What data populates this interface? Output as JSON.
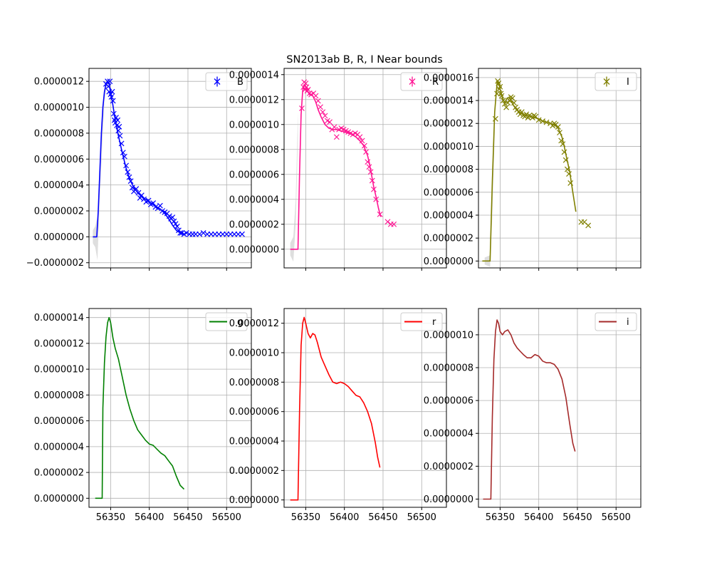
{
  "figure": {
    "title": "SN2013ab  B, R, I Near bounds"
  },
  "chart_data": [
    {
      "type": "line",
      "panel": "top-left",
      "xlim": [
        56322,
        56532
      ],
      "ylim": [
        -2.4e-07,
        1.3e-06
      ],
      "yticks": [
        -2e-07,
        0,
        2e-07,
        4e-07,
        6e-07,
        8e-07,
        1e-06,
        1.2e-06
      ],
      "ytick_labels": [
        "−0.0000002",
        "0.0000000",
        "0.0000002",
        "0.0000004",
        "0.0000006",
        "0.0000008",
        "0.0000010",
        "0.0000012"
      ],
      "xticks": [
        56350,
        56400,
        56450,
        56500
      ],
      "xtick_labels": [
        "",
        "",
        "",
        ""
      ],
      "grid": true,
      "legend": {
        "entries": [
          {
            "label": "B",
            "color": "#0000ff",
            "marker": "errorbar"
          }
        ],
        "placement": "top-right"
      },
      "color": "#0000ff",
      "band": {
        "x": [
          56327,
          56330,
          56333,
          56336,
          56339,
          56342,
          56345,
          56348
        ],
        "upper": [
          5e-08,
          8e-08,
          1.5e-07,
          6e-07,
          9.5e-07,
          1.12e-06,
          1.2e-06,
          1.22e-06
        ],
        "lower": [
          -5e-08,
          -8e-08,
          -1.8e-07,
          3e-07,
          7e-07,
          1.05e-06,
          1.16e-06,
          1.19e-06
        ]
      },
      "model": {
        "x": [
          56327,
          56332,
          56334,
          56336,
          56338,
          56340,
          56342,
          56344,
          56346,
          56348,
          56352,
          56356,
          56360,
          56365,
          56370,
          56375,
          56380,
          56385,
          56390,
          56395,
          56400,
          56405,
          56410,
          56415,
          56420,
          56425,
          56430,
          56435,
          56440,
          56445
        ],
        "y": [
          0,
          0,
          2e-07,
          5e-07,
          8e-07,
          1e-06,
          1.12e-06,
          1.18e-06,
          1.2e-06,
          1.18e-06,
          1.05e-06,
          9e-07,
          7.8e-07,
          6.5e-07,
          5.3e-07,
          4.4e-07,
          3.8e-07,
          3.4e-07,
          3.1e-07,
          2.9e-07,
          2.7e-07,
          2.5e-07,
          2.3e-07,
          2.1e-07,
          1.8e-07,
          1.4e-07,
          9e-08,
          5e-08,
          3e-08,
          2e-08
        ]
      },
      "points": {
        "x": [
          56344,
          56346,
          56347,
          56348,
          56349,
          56350,
          56351,
          56352,
          56353,
          56354,
          56355,
          56356,
          56357,
          56358,
          56359,
          56360,
          56361,
          56362,
          56364,
          56366,
          56368,
          56370,
          56372,
          56374,
          56376,
          56378,
          56380,
          56383,
          56386,
          56388,
          56390,
          56393,
          56396,
          56399,
          56402,
          56405,
          56408,
          56411,
          56414,
          56417,
          56420,
          56423,
          56426,
          56428,
          56430,
          56432,
          56434,
          56436,
          56438,
          56440,
          56442,
          56445,
          56448,
          56452,
          56456,
          56460,
          56465,
          56470,
          56475,
          56480,
          56485,
          56490,
          56495,
          56500,
          56505,
          56510,
          56515,
          56520
        ],
        "y": [
          1.18e-06,
          1.2e-06,
          1.16e-06,
          1.12e-06,
          1.2e-06,
          1.1e-06,
          1.08e-06,
          1.12e-06,
          1.05e-06,
          9.5e-07,
          9e-07,
          8.8e-07,
          9.2e-07,
          8.6e-07,
          9e-07,
          8.2e-07,
          8.5e-07,
          7.8e-07,
          7.2e-07,
          6.5e-07,
          6.2e-07,
          5.5e-07,
          5e-07,
          4.6e-07,
          4.3e-07,
          3.8e-07,
          3.5e-07,
          3.7e-07,
          3.4e-07,
          3e-07,
          3.2e-07,
          2.9e-07,
          2.7e-07,
          2.8e-07,
          2.5e-07,
          2.6e-07,
          2.3e-07,
          2.2e-07,
          2.4e-07,
          2e-07,
          1.9e-07,
          1.8e-07,
          1.6e-07,
          1.4e-07,
          1.5e-07,
          1.2e-07,
          1e-07,
          8e-08,
          5e-08,
          3e-08,
          3e-08,
          2e-08,
          3e-08,
          2e-08,
          2e-08,
          2e-08,
          2e-08,
          3e-08,
          2e-08,
          2e-08,
          2e-08,
          2e-08,
          2e-08,
          2e-08,
          2e-08,
          2e-08,
          2e-08,
          2e-08
        ]
      }
    },
    {
      "type": "line",
      "panel": "top-middle",
      "xlim": [
        56322,
        56532
      ],
      "ylim": [
        -1.5e-07,
        1.45e-06
      ],
      "yticks": [
        0,
        2e-07,
        4e-07,
        6e-07,
        8e-07,
        1e-06,
        1.2e-06,
        1.4e-06
      ],
      "ytick_labels": [
        "0.0000000",
        "0.0000002",
        "0.0000004",
        "0.0000006",
        "0.0000008",
        "0.0000010",
        "0.0000012",
        "0.0000014"
      ],
      "xticks": [
        56350,
        56400,
        56450,
        56500
      ],
      "xtick_labels": [
        "",
        "",
        "",
        ""
      ],
      "grid": true,
      "legend": {
        "entries": [
          {
            "label": "R",
            "color": "#ff1493",
            "marker": "errorbar"
          }
        ],
        "placement": "top-right"
      },
      "color": "#ff1493",
      "band": {
        "x": [
          56330,
          56334,
          56337,
          56340
        ],
        "upper": [
          5e-08,
          1e-07,
          4e-07,
          1.1e-06
        ],
        "lower": [
          -5e-08,
          -1e-07,
          2e-07,
          9e-07
        ]
      },
      "model": {
        "x": [
          56330,
          56340,
          56342,
          56344,
          56346,
          56348,
          56350,
          56352,
          56355,
          56358,
          56360,
          56363,
          56366,
          56370,
          56375,
          56380,
          56385,
          56390,
          56395,
          56400,
          56405,
          56410,
          56415,
          56420,
          56425,
          56430,
          56432,
          56435,
          56438,
          56441,
          56444,
          56447
        ],
        "y": [
          0,
          0,
          6e-07,
          1.08e-06,
          1.27e-06,
          1.32e-06,
          1.3e-06,
          1.27e-06,
          1.24e-06,
          1.24e-06,
          1.22e-06,
          1.18e-06,
          1.12e-06,
          1.06e-06,
          1e-06,
          9.7e-07,
          9.6e-07,
          9.6e-07,
          9.5e-07,
          9.4e-07,
          9.3e-07,
          9.2e-07,
          9e-07,
          8.7e-07,
          8.3e-07,
          7.5e-07,
          7e-07,
          6e-07,
          5e-07,
          4.2e-07,
          3.3e-07,
          2.6e-07
        ]
      },
      "points": {
        "x": [
          56345,
          56347,
          56348,
          56349,
          56350,
          56351,
          56352,
          56353,
          56355,
          56357,
          56360,
          56363,
          56366,
          56369,
          56372,
          56375,
          56378,
          56381,
          56384,
          56387,
          56390,
          56393,
          56396,
          56399,
          56402,
          56405,
          56408,
          56411,
          56414,
          56417,
          56420,
          56423,
          56426,
          56428,
          56430,
          56432,
          56434,
          56436,
          56438,
          56441,
          56446,
          56456,
          56460,
          56464
        ],
        "y": [
          1.13e-06,
          1.3e-06,
          1.34e-06,
          1.28e-06,
          1.33e-06,
          1.3e-06,
          1.27e-06,
          1.28e-06,
          1.25e-06,
          1.24e-06,
          1.25e-06,
          1.23e-06,
          1.19e-06,
          1.14e-06,
          1.1e-06,
          1.07e-06,
          1.03e-06,
          1.02e-06,
          9.6e-07,
          9.8e-07,
          9e-07,
          9.6e-07,
          9.7e-07,
          9.6e-07,
          9.5e-07,
          9.4e-07,
          9.3e-07,
          9.2e-07,
          9.3e-07,
          9.2e-07,
          9e-07,
          8.7e-07,
          8.3e-07,
          7.8e-07,
          7e-07,
          6.6e-07,
          6.2e-07,
          5.5e-07,
          4.8e-07,
          4e-07,
          2.8e-07,
          2.2e-07,
          2e-07,
          2e-07
        ]
      }
    },
    {
      "type": "line",
      "panel": "top-right",
      "xlim": [
        56322,
        56532
      ],
      "ylim": [
        -6e-08,
        1.68e-06
      ],
      "yticks": [
        0,
        2e-07,
        4e-07,
        6e-07,
        8e-07,
        1e-06,
        1.2e-06,
        1.4e-06,
        1.6e-06
      ],
      "ytick_labels": [
        "0.0000000",
        "0.0000002",
        "0.0000004",
        "0.0000006",
        "0.0000008",
        "0.0000010",
        "0.0000012",
        "0.0000014",
        "0.0000016"
      ],
      "xticks": [
        56350,
        56400,
        56450,
        56500
      ],
      "xtick_labels": [
        "",
        "",
        "",
        ""
      ],
      "grid": true,
      "legend": {
        "entries": [
          {
            "label": "I",
            "color": "#808000",
            "marker": "errorbar"
          }
        ],
        "placement": "top-right"
      },
      "color": "#808000",
      "band": {
        "x": [
          56330,
          56337,
          56340,
          56343
        ],
        "upper": [
          3e-08,
          5e-08,
          6e-07,
          1.3e-06
        ],
        "lower": [
          -3e-08,
          -5e-08,
          4e-07,
          1.1e-06
        ]
      },
      "model": {
        "x": [
          56327,
          56337,
          56340,
          56343,
          56346,
          56348,
          56350,
          56353,
          56356,
          56359,
          56362,
          56365,
          56368,
          56371,
          56375,
          56380,
          56385,
          56390,
          56395,
          56400,
          56405,
          56410,
          56415,
          56420,
          56425,
          56430,
          56433,
          56436,
          56440,
          56444,
          56448
        ],
        "y": [
          0,
          0,
          7e-07,
          1.3e-06,
          1.55e-06,
          1.56e-06,
          1.5e-06,
          1.42e-06,
          1.38e-06,
          1.42e-06,
          1.43e-06,
          1.39e-06,
          1.35e-06,
          1.32e-06,
          1.3e-06,
          1.28e-06,
          1.27e-06,
          1.26e-06,
          1.25e-06,
          1.24e-06,
          1.22e-06,
          1.21e-06,
          1.2e-06,
          1.19e-06,
          1.16e-06,
          1.08e-06,
          1e-06,
          9e-07,
          7.8e-07,
          6e-07,
          4.3e-07
        ]
      },
      "points": {
        "x": [
          56344,
          56346,
          56347,
          56348,
          56349,
          56350,
          56351,
          56352,
          56354,
          56356,
          56358,
          56360,
          56362,
          56364,
          56366,
          56368,
          56370,
          56372,
          56374,
          56376,
          56378,
          56380,
          56382,
          56384,
          56386,
          56388,
          56390,
          56392,
          56394,
          56396,
          56400,
          56405,
          56410,
          56415,
          56418,
          56420,
          56422,
          56425,
          56427,
          56429,
          56431,
          56433,
          56435,
          56437,
          56439,
          56441,
          56455,
          56459,
          56464
        ],
        "y": [
          1.24e-06,
          1.46e-06,
          1.57e-06,
          1.55e-06,
          1.5e-06,
          1.52e-06,
          1.46e-06,
          1.44e-06,
          1.4e-06,
          1.37e-06,
          1.34e-06,
          1.38e-06,
          1.4e-06,
          1.43e-06,
          1.42e-06,
          1.38e-06,
          1.34e-06,
          1.32e-06,
          1.3e-06,
          1.28e-06,
          1.3e-06,
          1.27e-06,
          1.26e-06,
          1.28e-06,
          1.25e-06,
          1.27e-06,
          1.26e-06,
          1.25e-06,
          1.27e-06,
          1.26e-06,
          1.23e-06,
          1.22e-06,
          1.21e-06,
          1.2e-06,
          1.18e-06,
          1.2e-06,
          1.19e-06,
          1.17e-06,
          1.12e-06,
          1.05e-06,
          1.02e-06,
          9.5e-07,
          8.8e-07,
          8e-07,
          7.6e-07,
          6.8e-07,
          3.4e-07,
          3.4e-07,
          3.1e-07
        ]
      }
    },
    {
      "type": "line",
      "panel": "bottom-left",
      "xlim": [
        56322,
        56532
      ],
      "ylim": [
        -7e-08,
        1.47e-06
      ],
      "yticks": [
        0,
        2e-07,
        4e-07,
        6e-07,
        8e-07,
        1e-06,
        1.2e-06,
        1.4e-06
      ],
      "ytick_labels": [
        "0.0000000",
        "0.0000002",
        "0.0000004",
        "0.0000006",
        "0.0000008",
        "0.0000010",
        "0.0000012",
        "0.0000014"
      ],
      "xticks": [
        56350,
        56400,
        56450,
        56500
      ],
      "xtick_labels": [
        "56350",
        "56400",
        "56450",
        "56500"
      ],
      "grid": true,
      "legend": {
        "entries": [
          {
            "label": "g",
            "color": "#008000",
            "marker": "line"
          }
        ],
        "placement": "top-right"
      },
      "color": "#008000",
      "model": {
        "x": [
          56330,
          56339,
          56340,
          56342,
          56344,
          56346,
          56348,
          56350,
          56353,
          56356,
          56360,
          56365,
          56370,
          56375,
          56380,
          56385,
          56390,
          56395,
          56400,
          56405,
          56410,
          56415,
          56420,
          56425,
          56430,
          56435,
          56440,
          56445
        ],
        "y": [
          0,
          0,
          7e-07,
          1.05e-06,
          1.25e-06,
          1.36e-06,
          1.4e-06,
          1.36e-06,
          1.24e-06,
          1.16e-06,
          1.08e-06,
          9.4e-07,
          8e-07,
          6.9e-07,
          6e-07,
          5.3e-07,
          4.9e-07,
          4.5e-07,
          4.2e-07,
          4.1e-07,
          3.8e-07,
          3.5e-07,
          3.3e-07,
          2.9e-07,
          2.5e-07,
          1.7e-07,
          1e-07,
          7e-08
        ]
      }
    },
    {
      "type": "line",
      "panel": "bottom-middle",
      "xlim": [
        56322,
        56532
      ],
      "ylim": [
        -5e-08,
        1.3e-06
      ],
      "yticks": [
        0,
        2e-07,
        4e-07,
        6e-07,
        8e-07,
        1e-06,
        1.2e-06
      ],
      "ytick_labels": [
        "0.0000000",
        "0.0000002",
        "0.0000004",
        "0.0000006",
        "0.0000008",
        "0.0000010",
        "0.0000012"
      ],
      "xticks": [
        56350,
        56400,
        56450,
        56500
      ],
      "xtick_labels": [
        "56350",
        "56400",
        "56450",
        "56500"
      ],
      "grid": true,
      "legend": {
        "entries": [
          {
            "label": "r",
            "color": "#ff0000",
            "marker": "line"
          }
        ],
        "placement": "top-right"
      },
      "color": "#ff0000",
      "model": {
        "x": [
          56330,
          56340,
          56342,
          56344,
          56346,
          56348,
          56350,
          56353,
          56356,
          56359,
          56362,
          56365,
          56370,
          56375,
          56380,
          56385,
          56390,
          56395,
          56400,
          56405,
          56410,
          56415,
          56420,
          56425,
          56430,
          56435,
          56440,
          56443,
          56446
        ],
        "y": [
          0,
          0,
          6e-07,
          1.05e-06,
          1.2e-06,
          1.24e-06,
          1.2e-06,
          1.13e-06,
          1.1e-06,
          1.13e-06,
          1.12e-06,
          1.07e-06,
          9.7e-07,
          9.1e-07,
          8.5e-07,
          8e-07,
          7.9e-07,
          8e-07,
          7.9e-07,
          7.7e-07,
          7.4e-07,
          7.1e-07,
          7e-07,
          6.6e-07,
          6e-07,
          5.2e-07,
          3.9e-07,
          2.9e-07,
          2.2e-07
        ]
      }
    },
    {
      "type": "line",
      "panel": "bottom-right",
      "xlim": [
        56322,
        56532
      ],
      "ylim": [
        -5e-08,
        1.16e-06
      ],
      "yticks": [
        0,
        2e-07,
        4e-07,
        6e-07,
        8e-07,
        1e-06
      ],
      "ytick_labels": [
        "0.0000000",
        "0.0000002",
        "0.0000004",
        "0.0000006",
        "0.0000008",
        "0.0000010"
      ],
      "xticks": [
        56350,
        56400,
        56450,
        56500
      ],
      "xtick_labels": [
        "56350",
        "56400",
        "56450",
        "56500"
      ],
      "grid": true,
      "legend": {
        "entries": [
          {
            "label": "i",
            "color": "#a52a2a",
            "marker": "line"
          }
        ],
        "placement": "top-right"
      },
      "color": "#a52a2a",
      "model": {
        "x": [
          56328,
          56338,
          56340,
          56342,
          56344,
          56346,
          56348,
          56350,
          56353,
          56356,
          56360,
          56364,
          56368,
          56372,
          56376,
          56380,
          56385,
          56390,
          56395,
          56400,
          56405,
          56410,
          56415,
          56420,
          56425,
          56430,
          56435,
          56440,
          56444,
          56447
        ],
        "y": [
          0,
          0,
          5e-07,
          8.5e-07,
          1.02e-06,
          1.09e-06,
          1.07e-06,
          1.02e-06,
          1e-06,
          1.02e-06,
          1.03e-06,
          1e-06,
          9.5e-07,
          9.2e-07,
          9e-07,
          8.8e-07,
          8.6e-07,
          8.6e-07,
          8.8e-07,
          8.7e-07,
          8.4e-07,
          8.3e-07,
          8.3e-07,
          8.2e-07,
          7.9e-07,
          7.3e-07,
          6.2e-07,
          4.6e-07,
          3.4e-07,
          2.9e-07
        ]
      }
    }
  ]
}
